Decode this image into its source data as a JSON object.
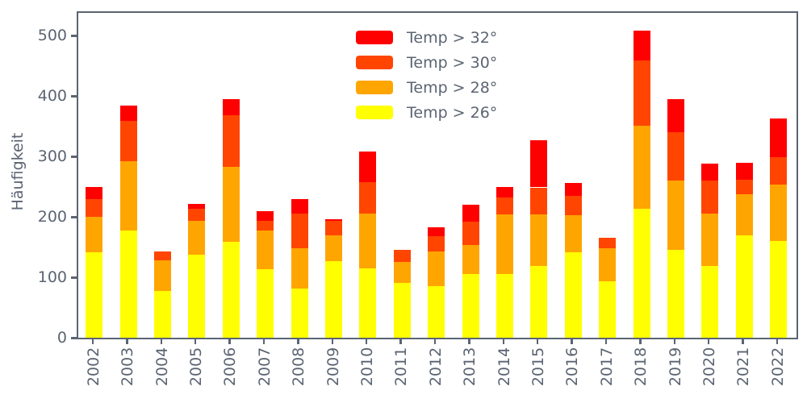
{
  "chart_data": {
    "type": "bar",
    "stacked": true,
    "title": "",
    "xlabel": "",
    "ylabel": "Häufigkeit",
    "ylim": [
      0,
      538
    ],
    "yticks": [
      0,
      100,
      200,
      300,
      400,
      500
    ],
    "grid": false,
    "categories": [
      "2002",
      "2003",
      "2004",
      "2005",
      "2006",
      "2007",
      "2008",
      "2009",
      "2010",
      "2011",
      "2012",
      "2013",
      "2014",
      "2015",
      "2016",
      "2017",
      "2018",
      "2019",
      "2020",
      "2021",
      "2022"
    ],
    "series": [
      {
        "name": "Temp > 26°",
        "color": "#FFFF00",
        "values": [
          141,
          177,
          78,
          137,
          159,
          113,
          82,
          127,
          115,
          91,
          86,
          106,
          106,
          119,
          141,
          93,
          213,
          145,
          119,
          169,
          160
        ]
      },
      {
        "name": "Temp > 28°",
        "color": "#FFA500",
        "values": [
          59,
          116,
          50,
          56,
          124,
          64,
          66,
          42,
          90,
          35,
          57,
          48,
          98,
          85,
          62,
          55,
          138,
          115,
          87,
          69,
          94
        ]
      },
      {
        "name": "Temp > 30°",
        "color": "#FF4500",
        "values": [
          29,
          66,
          15,
          21,
          86,
          17,
          57,
          24,
          53,
          19,
          25,
          38,
          28,
          45,
          32,
          17,
          108,
          80,
          55,
          24,
          45
        ]
      },
      {
        "name": "Temp > 32°",
        "color": "#FF0000",
        "values": [
          21,
          26,
          0,
          7,
          26,
          15,
          24,
          3,
          50,
          0,
          15,
          28,
          18,
          78,
          22,
          0,
          49,
          55,
          27,
          28,
          64
        ]
      }
    ],
    "totals": [
      250,
      385,
      143,
      221,
      395,
      209,
      229,
      196,
      308,
      145,
      183,
      220,
      250,
      327,
      257,
      165,
      508,
      395,
      288,
      290,
      363
    ],
    "legend": {
      "position": "upper center",
      "entries": [
        "Temp > 32°",
        "Temp > 30°",
        "Temp > 28°",
        "Temp > 26°"
      ]
    }
  },
  "colors": {
    "axis": "#5b6472",
    "background": "#ffffff",
    "red": "#FF0000",
    "orangered": "#FF4500",
    "orange": "#FFA500",
    "yellow": "#FFFF00"
  }
}
